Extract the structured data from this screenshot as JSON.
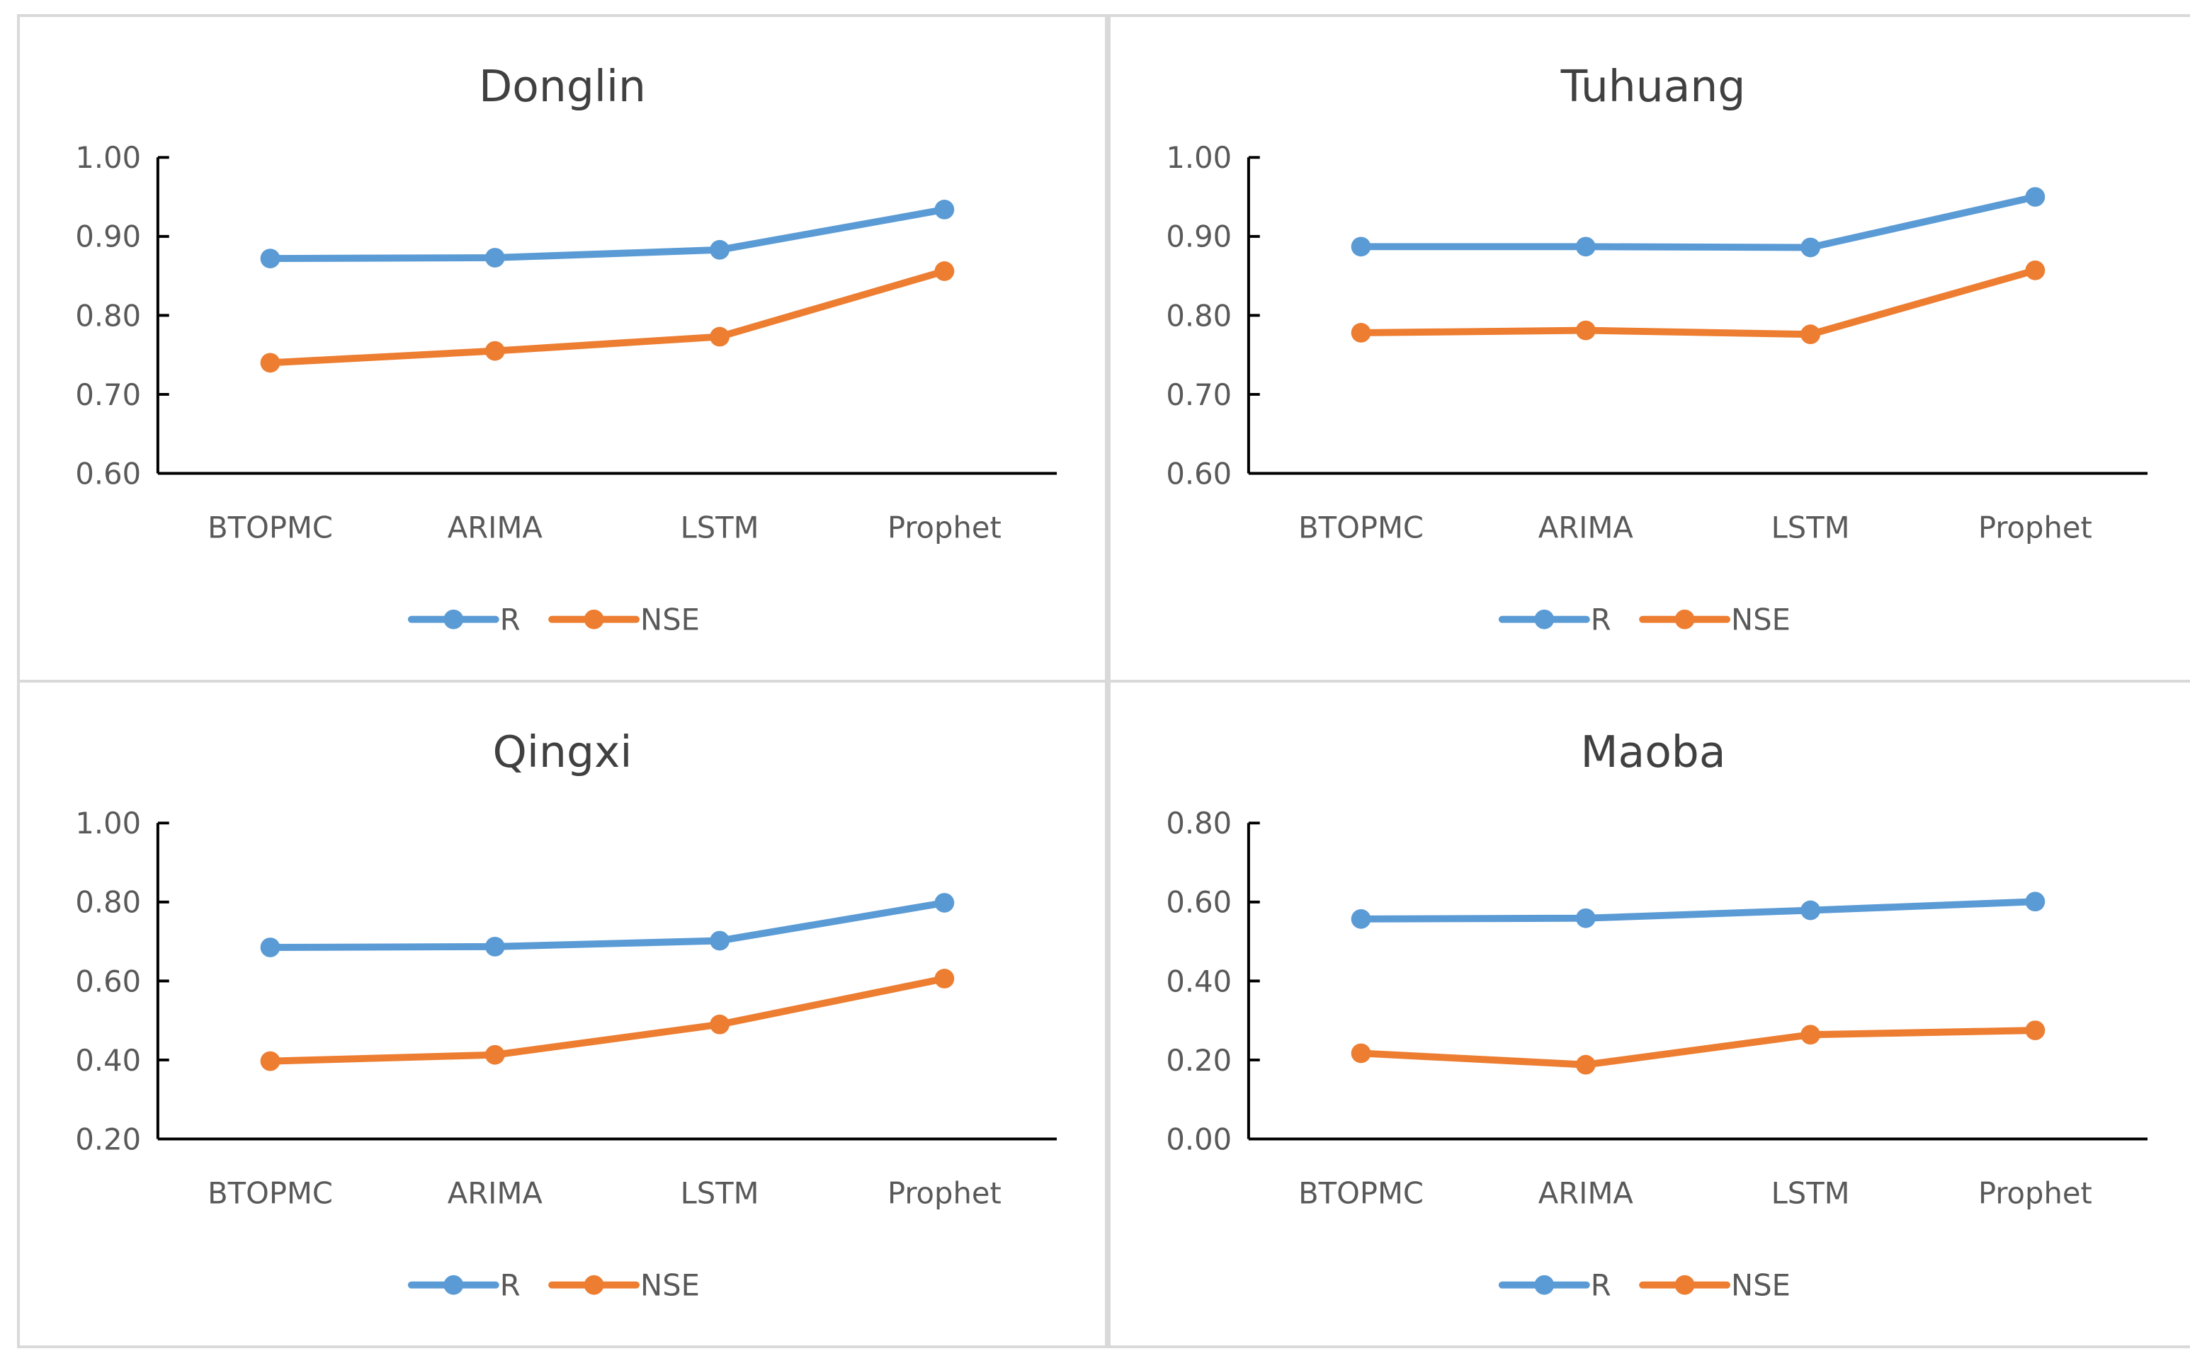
{
  "colors": {
    "R": "#5b9bd5",
    "NSE": "#ed7d31",
    "axis": "#000000",
    "text": "#595959",
    "border": "#d9d9d9"
  },
  "chart_data": [
    {
      "type": "line",
      "title": "Donglin",
      "categories": [
        "BTOPMC",
        "ARIMA",
        "LSTM",
        "Prophet"
      ],
      "ylim": [
        0.6,
        1.0
      ],
      "yticks": [
        "0.60",
        "0.70",
        "0.80",
        "0.90",
        "1.00"
      ],
      "series": [
        {
          "name": "R",
          "values": [
            0.872,
            0.873,
            0.883,
            0.934
          ]
        },
        {
          "name": "NSE",
          "values": [
            0.74,
            0.755,
            0.773,
            0.856
          ]
        }
      ]
    },
    {
      "type": "line",
      "title": "Tuhuang",
      "categories": [
        "BTOPMC",
        "ARIMA",
        "LSTM",
        "Prophet"
      ],
      "ylim": [
        0.6,
        1.0
      ],
      "yticks": [
        "0.60",
        "0.70",
        "0.80",
        "0.90",
        "1.00"
      ],
      "series": [
        {
          "name": "R",
          "values": [
            0.887,
            0.887,
            0.886,
            0.95
          ]
        },
        {
          "name": "NSE",
          "values": [
            0.778,
            0.781,
            0.776,
            0.857
          ]
        }
      ]
    },
    {
      "type": "line",
      "title": "Qingxi",
      "categories": [
        "BTOPMC",
        "ARIMA",
        "LSTM",
        "Prophet"
      ],
      "ylim": [
        0.2,
        1.0
      ],
      "yticks": [
        "0.20",
        "0.40",
        "0.60",
        "0.80",
        "1.00"
      ],
      "series": [
        {
          "name": "R",
          "values": [
            0.685,
            0.687,
            0.702,
            0.798
          ]
        },
        {
          "name": "NSE",
          "values": [
            0.397,
            0.413,
            0.49,
            0.606
          ]
        }
      ]
    },
    {
      "type": "line",
      "title": "Maoba",
      "categories": [
        "BTOPMC",
        "ARIMA",
        "LSTM",
        "Prophet"
      ],
      "ylim": [
        0.0,
        0.8
      ],
      "yticks": [
        "0.00",
        "0.20",
        "0.40",
        "0.60",
        "0.80"
      ],
      "series": [
        {
          "name": "R",
          "values": [
            0.557,
            0.559,
            0.579,
            0.601
          ]
        },
        {
          "name": "NSE",
          "values": [
            0.217,
            0.188,
            0.264,
            0.275
          ]
        }
      ]
    }
  ]
}
